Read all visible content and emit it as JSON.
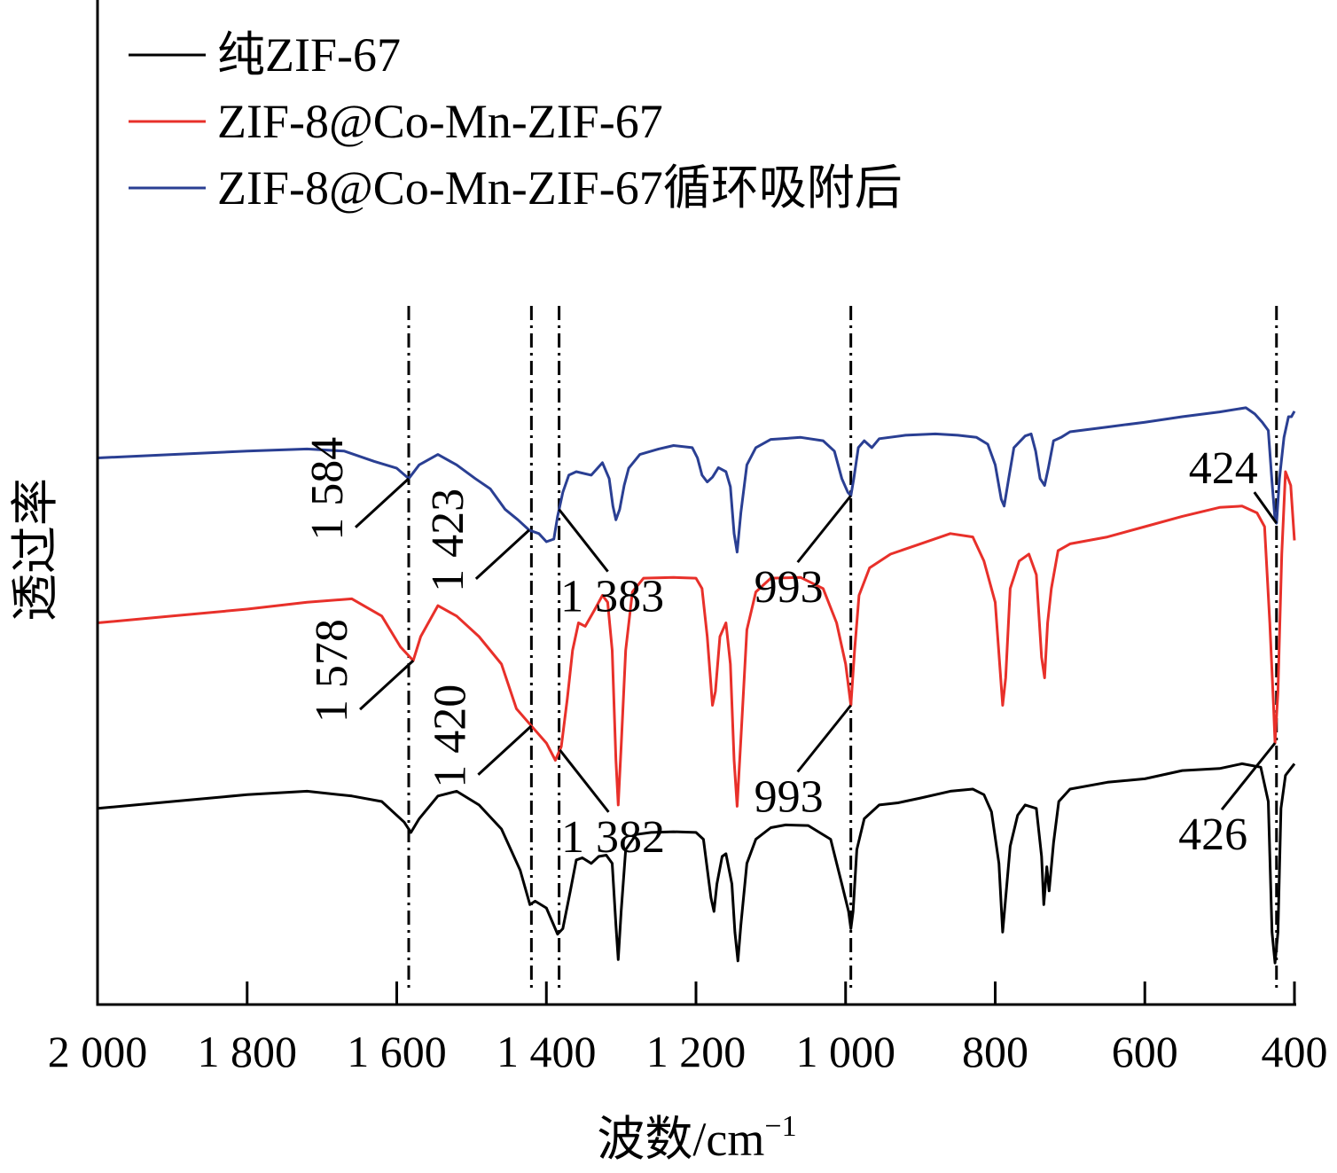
{
  "chart_data": {
    "type": "line",
    "xlabel": "波数/cm",
    "xlabel_sup": "−1",
    "ylabel": "透过率",
    "xlim": [
      2000,
      400
    ],
    "x_reversed": true,
    "x_ticks": [
      2000,
      1800,
      1600,
      1400,
      1200,
      1000,
      800,
      600,
      400
    ],
    "x_tick_labels": [
      "2 000",
      "1 800",
      "1 600",
      "1 400",
      "1 200",
      "1 000",
      "800",
      "600",
      "400"
    ],
    "y_ticks_shown": false,
    "ylim": [
      0,
      100
    ],
    "legend_position": "top-left",
    "series": [
      {
        "name": "纯ZIF-67",
        "color": "#000000",
        "points": [
          [
            2000,
            23
          ],
          [
            1900,
            24
          ],
          [
            1800,
            25
          ],
          [
            1720,
            25.5
          ],
          [
            1660,
            24.8
          ],
          [
            1620,
            24
          ],
          [
            1590,
            21
          ],
          [
            1581,
            19.5
          ],
          [
            1570,
            21.5
          ],
          [
            1545,
            24.8
          ],
          [
            1520,
            25.5
          ],
          [
            1490,
            23.5
          ],
          [
            1460,
            20
          ],
          [
            1435,
            14
          ],
          [
            1422,
            9
          ],
          [
            1415,
            9.5
          ],
          [
            1400,
            8.5
          ],
          [
            1385,
            4.7
          ],
          [
            1378,
            5.5
          ],
          [
            1368,
            11
          ],
          [
            1360,
            15.5
          ],
          [
            1352,
            15.8
          ],
          [
            1340,
            15
          ],
          [
            1330,
            16
          ],
          [
            1320,
            16.2
          ],
          [
            1312,
            15
          ],
          [
            1307,
            6
          ],
          [
            1304,
            1
          ],
          [
            1300,
            8
          ],
          [
            1294,
            17
          ],
          [
            1280,
            19.2
          ],
          [
            1260,
            19.5
          ],
          [
            1230,
            19.6
          ],
          [
            1200,
            19.5
          ],
          [
            1190,
            18.5
          ],
          [
            1180,
            10
          ],
          [
            1176,
            8
          ],
          [
            1172,
            12
          ],
          [
            1165,
            16
          ],
          [
            1160,
            16.4
          ],
          [
            1152,
            12
          ],
          [
            1148,
            5
          ],
          [
            1144,
            0.8
          ],
          [
            1140,
            6
          ],
          [
            1132,
            15
          ],
          [
            1120,
            18.5
          ],
          [
            1100,
            20.2
          ],
          [
            1080,
            20.6
          ],
          [
            1050,
            20.5
          ],
          [
            1020,
            18.5
          ],
          [
            1005,
            12
          ],
          [
            996,
            8
          ],
          [
            993,
            5.5
          ],
          [
            990,
            8
          ],
          [
            985,
            17
          ],
          [
            975,
            21.5
          ],
          [
            955,
            23.5
          ],
          [
            930,
            23.8
          ],
          [
            900,
            24.5
          ],
          [
            860,
            25.5
          ],
          [
            830,
            25.8
          ],
          [
            815,
            25
          ],
          [
            805,
            22.5
          ],
          [
            795,
            15
          ],
          [
            790,
            5
          ],
          [
            786,
            10
          ],
          [
            780,
            17.5
          ],
          [
            770,
            22
          ],
          [
            760,
            23.5
          ],
          [
            745,
            23
          ],
          [
            738,
            16
          ],
          [
            735,
            9
          ],
          [
            731,
            14.5
          ],
          [
            728,
            11
          ],
          [
            722,
            18
          ],
          [
            715,
            24
          ],
          [
            700,
            25.8
          ],
          [
            650,
            26.8
          ],
          [
            600,
            27.3
          ],
          [
            550,
            28.5
          ],
          [
            500,
            28.8
          ],
          [
            470,
            29.5
          ],
          [
            445,
            29
          ],
          [
            435,
            24
          ],
          [
            430,
            5
          ],
          [
            426,
            0.5
          ],
          [
            422,
            5
          ],
          [
            418,
            23
          ],
          [
            412,
            27.8
          ],
          [
            405,
            28.8
          ],
          [
            400,
            29.5
          ]
        ]
      },
      {
        "name": "ZIF-8@Co-Mn-ZIF-67",
        "color": "#e8302a",
        "points": [
          [
            2000,
            50
          ],
          [
            1900,
            51
          ],
          [
            1800,
            52
          ],
          [
            1720,
            53
          ],
          [
            1660,
            53.5
          ],
          [
            1620,
            51
          ],
          [
            1595,
            46.5
          ],
          [
            1578,
            44.5
          ],
          [
            1568,
            48
          ],
          [
            1545,
            52.5
          ],
          [
            1520,
            51
          ],
          [
            1490,
            48
          ],
          [
            1460,
            44
          ],
          [
            1440,
            37.5
          ],
          [
            1420,
            35
          ],
          [
            1400,
            32.5
          ],
          [
            1388,
            30
          ],
          [
            1380,
            32
          ],
          [
            1372,
            39
          ],
          [
            1365,
            46
          ],
          [
            1357,
            50
          ],
          [
            1348,
            49.5
          ],
          [
            1335,
            52
          ],
          [
            1325,
            54
          ],
          [
            1318,
            53
          ],
          [
            1312,
            46
          ],
          [
            1307,
            30
          ],
          [
            1304,
            23.5
          ],
          [
            1300,
            32
          ],
          [
            1294,
            46
          ],
          [
            1285,
            54.5
          ],
          [
            1270,
            56.5
          ],
          [
            1230,
            56.6
          ],
          [
            1200,
            56.5
          ],
          [
            1192,
            55
          ],
          [
            1185,
            48
          ],
          [
            1178,
            38
          ],
          [
            1174,
            40
          ],
          [
            1168,
            48
          ],
          [
            1160,
            50
          ],
          [
            1154,
            44
          ],
          [
            1149,
            30
          ],
          [
            1145,
            23.3
          ],
          [
            1140,
            33
          ],
          [
            1132,
            49
          ],
          [
            1120,
            54.5
          ],
          [
            1100,
            56.5
          ],
          [
            1060,
            56.6
          ],
          [
            1030,
            55
          ],
          [
            1012,
            50
          ],
          [
            1000,
            44
          ],
          [
            993,
            38
          ],
          [
            988,
            46
          ],
          [
            982,
            54
          ],
          [
            968,
            58
          ],
          [
            940,
            60
          ],
          [
            900,
            61.5
          ],
          [
            860,
            63
          ],
          [
            830,
            62.5
          ],
          [
            815,
            59
          ],
          [
            800,
            53
          ],
          [
            790,
            38
          ],
          [
            786,
            42
          ],
          [
            780,
            55
          ],
          [
            768,
            59
          ],
          [
            755,
            60
          ],
          [
            745,
            57
          ],
          [
            738,
            45
          ],
          [
            734,
            42
          ],
          [
            730,
            50
          ],
          [
            725,
            55
          ],
          [
            716,
            60.5
          ],
          [
            700,
            61.5
          ],
          [
            650,
            62.5
          ],
          [
            600,
            64
          ],
          [
            550,
            65.5
          ],
          [
            500,
            66.8
          ],
          [
            470,
            67
          ],
          [
            450,
            66
          ],
          [
            440,
            64
          ],
          [
            433,
            50
          ],
          [
            428,
            38
          ],
          [
            426,
            32.5
          ],
          [
            422,
            40
          ],
          [
            417,
            60
          ],
          [
            412,
            72
          ],
          [
            405,
            70
          ],
          [
            400,
            62
          ]
        ]
      },
      {
        "name": "ZIF-8@Co-Mn-ZIF-67循环吸附后",
        "color": "#2a3f93",
        "points": [
          [
            2000,
            74
          ],
          [
            1900,
            74.5
          ],
          [
            1800,
            75
          ],
          [
            1720,
            75.3
          ],
          [
            1670,
            75
          ],
          [
            1630,
            73.5
          ],
          [
            1600,
            72.5
          ],
          [
            1584,
            71
          ],
          [
            1570,
            73
          ],
          [
            1545,
            74.5
          ],
          [
            1520,
            73
          ],
          [
            1495,
            71
          ],
          [
            1475,
            69.5
          ],
          [
            1455,
            66.5
          ],
          [
            1438,
            65
          ],
          [
            1423,
            63.5
          ],
          [
            1410,
            63
          ],
          [
            1400,
            61.8
          ],
          [
            1390,
            62.2
          ],
          [
            1385,
            65.5
          ],
          [
            1378,
            69
          ],
          [
            1370,
            71.5
          ],
          [
            1360,
            72
          ],
          [
            1340,
            71.5
          ],
          [
            1325,
            73.3
          ],
          [
            1316,
            71
          ],
          [
            1311,
            67
          ],
          [
            1307,
            65
          ],
          [
            1302,
            66.5
          ],
          [
            1296,
            70
          ],
          [
            1290,
            72.5
          ],
          [
            1275,
            74.5
          ],
          [
            1250,
            75.3
          ],
          [
            1230,
            75.8
          ],
          [
            1205,
            75.5
          ],
          [
            1198,
            74
          ],
          [
            1192,
            71.5
          ],
          [
            1185,
            70.5
          ],
          [
            1178,
            71.2
          ],
          [
            1170,
            72.6
          ],
          [
            1160,
            72
          ],
          [
            1154,
            69.8
          ],
          [
            1149,
            63
          ],
          [
            1145,
            60.3
          ],
          [
            1140,
            66
          ],
          [
            1132,
            73
          ],
          [
            1120,
            75.5
          ],
          [
            1100,
            76.7
          ],
          [
            1060,
            77
          ],
          [
            1030,
            76.5
          ],
          [
            1015,
            75
          ],
          [
            1005,
            71
          ],
          [
            997,
            69
          ],
          [
            993,
            68.5
          ],
          [
            989,
            71
          ],
          [
            983,
            75.5
          ],
          [
            975,
            76.5
          ],
          [
            965,
            75.5
          ],
          [
            955,
            76.8
          ],
          [
            920,
            77.3
          ],
          [
            880,
            77.5
          ],
          [
            850,
            77.3
          ],
          [
            825,
            77
          ],
          [
            810,
            76
          ],
          [
            800,
            73
          ],
          [
            792,
            68
          ],
          [
            788,
            67
          ],
          [
            782,
            71
          ],
          [
            775,
            75.5
          ],
          [
            760,
            77.2
          ],
          [
            752,
            77.5
          ],
          [
            746,
            75
          ],
          [
            740,
            71
          ],
          [
            734,
            70
          ],
          [
            729,
            72.5
          ],
          [
            722,
            76.5
          ],
          [
            712,
            77
          ],
          [
            700,
            77.8
          ],
          [
            650,
            78.5
          ],
          [
            600,
            79.2
          ],
          [
            550,
            80
          ],
          [
            500,
            80.7
          ],
          [
            465,
            81.3
          ],
          [
            453,
            80.4
          ],
          [
            443,
            79.2
          ],
          [
            435,
            78
          ],
          [
            430,
            70.5
          ],
          [
            426,
            65
          ],
          [
            424,
            64.5
          ],
          [
            420,
            71
          ],
          [
            414,
            77
          ],
          [
            408,
            80
          ],
          [
            404,
            80
          ],
          [
            400,
            80.8
          ]
        ]
      }
    ],
    "reference_lines": [
      1584,
      1420,
      1383,
      993,
      424
    ],
    "annotations": [
      {
        "text": "1 584",
        "x": 1584,
        "series": 2,
        "rotated": true
      },
      {
        "text": "1 423",
        "x": 1423,
        "series": 2,
        "rotated": true
      },
      {
        "text": "1 383",
        "x": 1383,
        "series": 2,
        "rotated": false
      },
      {
        "text": "993",
        "x": 993,
        "series": 2,
        "rotated": false
      },
      {
        "text": "424",
        "x": 424,
        "series": 2,
        "rotated": false
      },
      {
        "text": "1 578",
        "x": 1578,
        "series": 1,
        "rotated": true
      },
      {
        "text": "1 420",
        "x": 1420,
        "series": 1,
        "rotated": true
      },
      {
        "text": "1 382",
        "x": 1382,
        "series": 1,
        "rotated": false
      },
      {
        "text": "993",
        "x": 993,
        "series": 1,
        "rotated": false
      },
      {
        "text": "426",
        "x": 426,
        "series": 1,
        "rotated": false
      }
    ]
  }
}
